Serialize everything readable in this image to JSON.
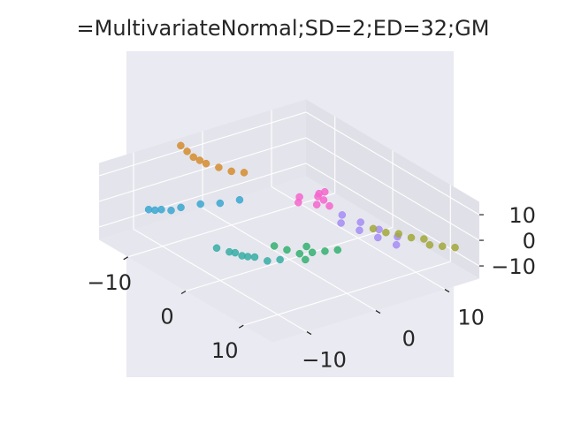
{
  "chart_data": {
    "type": "scatter",
    "title": "=MultivariateNormal;SD=2;ED=32;GM",
    "projection": "3d",
    "style": "seaborn-darkgrid",
    "xlim": [
      -15,
      15
    ],
    "ylim": [
      -15,
      15
    ],
    "zlim": [
      -15,
      15
    ],
    "x_ticks": [
      "−10",
      "0",
      "10"
    ],
    "y_ticks": [
      "−10",
      "0",
      "10"
    ],
    "z_ticks": [
      "−10",
      "0",
      "10"
    ],
    "xlabel": "",
    "ylabel": "",
    "zlabel": "",
    "series": [
      {
        "color": "#d58d2f",
        "points": [
          [
            -14,
            -4,
            14
          ],
          [
            -13.5,
            -3.5,
            12
          ],
          [
            -13,
            -3,
            10
          ],
          [
            -12.5,
            -2.5,
            9
          ],
          [
            -12,
            -2,
            8
          ],
          [
            -11,
            -1,
            7
          ],
          [
            -10,
            0,
            6
          ],
          [
            -9,
            1,
            6
          ]
        ]
      },
      {
        "color": "#39a7d0",
        "points": [
          [
            -10,
            -12,
            1
          ],
          [
            -9.5,
            -11.5,
            1
          ],
          [
            -9,
            -11,
            1.5
          ],
          [
            -8.5,
            -10,
            1
          ],
          [
            -8,
            -9,
            2
          ],
          [
            -7,
            -7,
            3
          ],
          [
            -6,
            -5,
            3
          ],
          [
            -5,
            -3,
            4
          ]
        ]
      },
      {
        "color": "#36ada4",
        "points": [
          [
            -3,
            -8,
            -8
          ],
          [
            -2,
            -7,
            -9
          ],
          [
            -1,
            -6,
            -10
          ],
          [
            0,
            -5,
            -10
          ],
          [
            1,
            -4,
            -11
          ],
          [
            0,
            -6,
            -9
          ],
          [
            -1,
            -7,
            -8
          ],
          [
            2,
            -3,
            -10
          ]
        ]
      },
      {
        "color": "#33b06f",
        "points": [
          [
            1,
            -3,
            -6
          ],
          [
            2,
            -2,
            -7
          ],
          [
            3,
            -1,
            -8
          ],
          [
            4,
            0,
            -7
          ],
          [
            5,
            1,
            -6
          ],
          [
            6,
            2,
            -5
          ],
          [
            4,
            -1,
            -9
          ],
          [
            3,
            0,
            -6
          ]
        ]
      },
      {
        "color": "#f565cc",
        "points": [
          [
            -2,
            6,
            3
          ],
          [
            -1,
            5,
            4
          ],
          [
            0,
            5,
            4
          ],
          [
            -3,
            4,
            2
          ],
          [
            -1,
            6,
            5
          ],
          [
            0,
            4,
            3
          ],
          [
            -2,
            3,
            2
          ],
          [
            1,
            5,
            3
          ]
        ]
      },
      {
        "color": "#a48cf4",
        "points": [
          [
            2,
            6,
            0
          ],
          [
            4,
            7,
            -1
          ],
          [
            6,
            8,
            -2
          ],
          [
            8,
            9,
            -3
          ],
          [
            3,
            5,
            -1
          ],
          [
            5,
            6,
            -2
          ],
          [
            7,
            7,
            -3
          ],
          [
            9,
            8,
            -4
          ]
        ]
      },
      {
        "color": "#a1a838",
        "points": [
          [
            5,
            8,
            -3
          ],
          [
            7,
            10,
            -4
          ],
          [
            9,
            12,
            -5
          ],
          [
            11,
            13,
            -6
          ],
          [
            6,
            9,
            -4
          ],
          [
            8,
            11,
            -5
          ],
          [
            10,
            12,
            -6
          ],
          [
            12,
            14,
            -6
          ]
        ]
      }
    ]
  }
}
